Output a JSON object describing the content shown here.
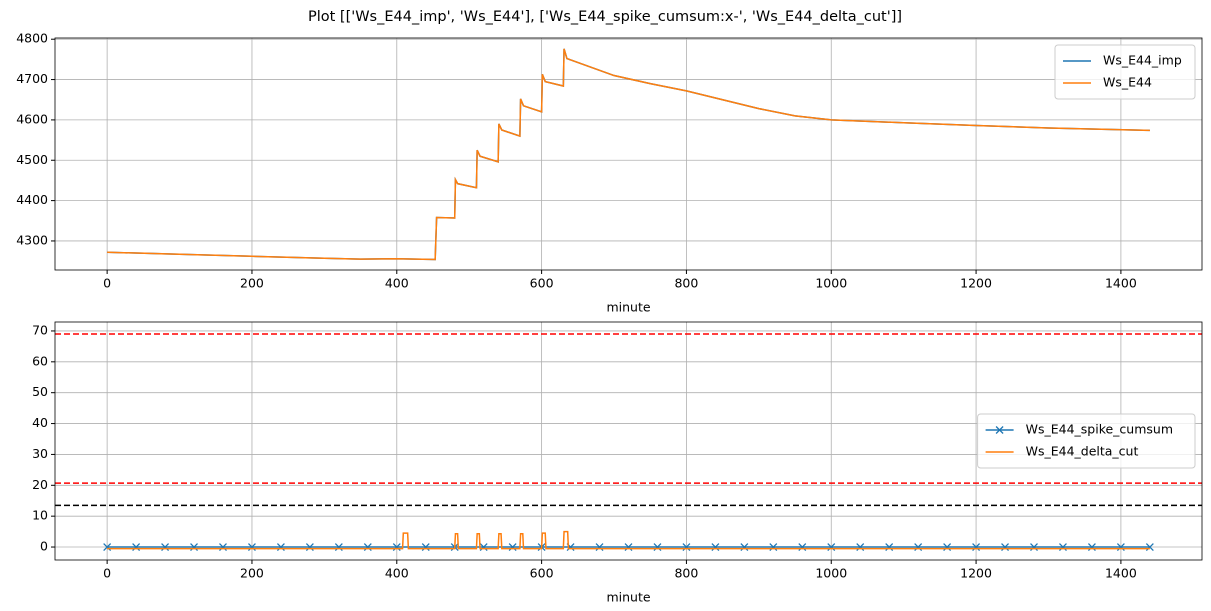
{
  "title": "Plot [['Ws_E44_imp', 'Ws_E44'], ['Ws_E44_spike_cumsum:x-', 'Ws_E44_delta_cut']]",
  "chart_data": [
    {
      "type": "line",
      "xlabel": "minute",
      "xlim": [
        -72,
        1512
      ],
      "xticks": [
        0,
        200,
        400,
        600,
        800,
        1000,
        1200,
        1400
      ],
      "ylim": [
        4228,
        4803
      ],
      "yticks": [
        4300,
        4400,
        4500,
        4600,
        4700,
        4800
      ],
      "grid": true,
      "legend": "upper right",
      "x": [
        0,
        100,
        200,
        300,
        350,
        400,
        453,
        455,
        480,
        481,
        484,
        510,
        511,
        515,
        540,
        541,
        545,
        570,
        571,
        575,
        600,
        601,
        605,
        630,
        631,
        635,
        700,
        750,
        800,
        850,
        900,
        950,
        1000,
        1100,
        1200,
        1300,
        1440
      ],
      "series": [
        {
          "name": "Ws_E44_imp",
          "color": "#1f77b4",
          "values": [
            4272,
            4267,
            4262,
            4257,
            4255,
            4256,
            4254,
            4358,
            4357,
            4452,
            4442,
            4432,
            4525,
            4510,
            4496,
            4590,
            4575,
            4560,
            4652,
            4635,
            4620,
            4713,
            4695,
            4684,
            4776,
            4752,
            4710,
            4690,
            4672,
            4650,
            4628,
            4610,
            4600,
            4593,
            4586,
            4580,
            4574
          ]
        },
        {
          "name": "Ws_E44",
          "color": "#ff7f0e",
          "values": [
            4272,
            4267,
            4262,
            4257,
            4255,
            4256,
            4254,
            4358,
            4357,
            4452,
            4442,
            4432,
            4525,
            4510,
            4496,
            4590,
            4575,
            4560,
            4652,
            4635,
            4620,
            4713,
            4695,
            4684,
            4776,
            4752,
            4710,
            4690,
            4672,
            4650,
            4628,
            4610,
            4600,
            4593,
            4586,
            4580,
            4574
          ]
        }
      ]
    },
    {
      "type": "line",
      "xlabel": "minute",
      "xlim": [
        -72,
        1512
      ],
      "xticks": [
        0,
        200,
        400,
        600,
        800,
        1000,
        1200,
        1400
      ],
      "ylim": [
        -4.2,
        72.9
      ],
      "yticks": [
        0,
        10,
        20,
        30,
        40,
        50,
        60,
        70
      ],
      "grid": true,
      "legend": "center right",
      "hlines": [
        {
          "value": 69,
          "color": "red"
        },
        {
          "value": 20.7,
          "color": "red"
        },
        {
          "value": 13.5,
          "color": "black"
        }
      ],
      "series": [
        {
          "name": "Ws_E44_spike_cumsum",
          "color": "#1f77b4",
          "marker": "x",
          "x": [
            0,
            40,
            80,
            120,
            160,
            200,
            240,
            280,
            320,
            360,
            400,
            440,
            480,
            520,
            560,
            600,
            640,
            680,
            720,
            760,
            800,
            840,
            880,
            920,
            960,
            1000,
            1040,
            1080,
            1120,
            1160,
            1200,
            1240,
            1280,
            1320,
            1360,
            1400,
            1440
          ],
          "values": [
            0,
            0,
            0,
            0,
            0,
            0,
            0,
            0,
            0,
            0,
            0,
            0,
            0,
            0,
            0,
            0,
            0,
            0,
            0,
            0,
            0,
            0,
            0,
            0,
            0,
            0,
            0,
            0,
            0,
            0,
            0,
            0,
            0,
            0,
            0,
            0,
            0
          ]
        },
        {
          "name": "Ws_E44_delta_cut",
          "color": "#ff7f0e",
          "x": [
            0,
            408,
            409,
            415,
            416,
            480,
            481,
            484,
            485,
            510,
            511,
            514,
            515,
            540,
            541,
            544,
            545,
            570,
            571,
            574,
            575,
            600,
            601,
            605,
            606,
            630,
            631,
            636,
            637,
            1440
          ],
          "values": [
            -0.5,
            -0.5,
            4.5,
            4.5,
            -0.5,
            -0.5,
            4.3,
            4.3,
            -0.5,
            -0.5,
            4.3,
            4.3,
            -0.5,
            -0.5,
            4.3,
            4.3,
            -0.5,
            -0.5,
            4.3,
            4.3,
            -0.5,
            -0.5,
            4.5,
            4.5,
            -0.5,
            -0.5,
            5,
            5,
            -0.5,
            -0.5
          ]
        }
      ]
    }
  ]
}
